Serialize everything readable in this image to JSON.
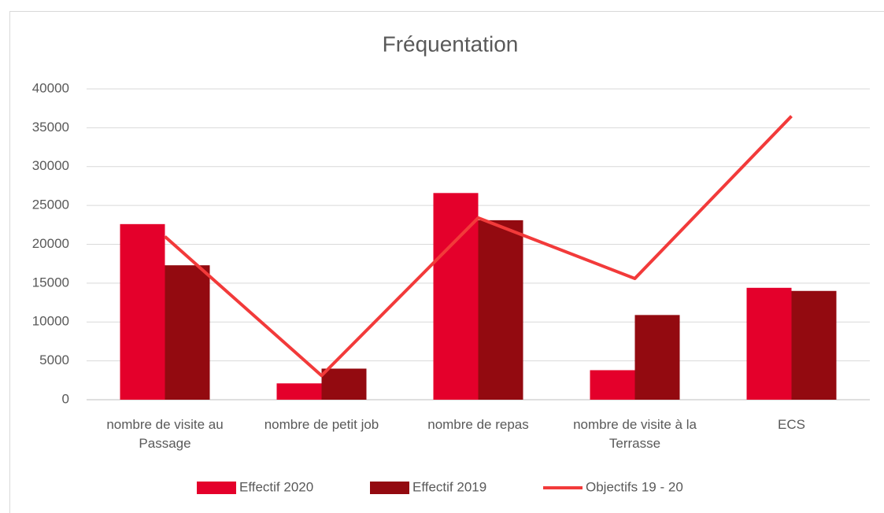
{
  "chart_data": {
    "type": "bar-line",
    "title": "Fréquentation",
    "categories": [
      "nombre de visite au Passage",
      "nombre de petit job",
      "nombre de repas",
      "nombre de visite à la Terrasse",
      "ECS"
    ],
    "series": [
      {
        "name": "Effectif 2020",
        "type": "bar",
        "color": "#e4002b",
        "values": [
          22600,
          2100,
          26600,
          3800,
          14400
        ]
      },
      {
        "name": "Effectif 2019",
        "type": "bar",
        "color": "#930a10",
        "values": [
          17300,
          4000,
          23100,
          10900,
          14000
        ]
      },
      {
        "name": "Objectifs 19 - 20",
        "type": "line",
        "color": "#f23a3a",
        "values": [
          21000,
          3100,
          23400,
          15600,
          36500
        ]
      }
    ],
    "ylim": [
      0,
      40000
    ],
    "yticks": [
      0,
      5000,
      10000,
      15000,
      20000,
      25000,
      30000,
      35000,
      40000
    ],
    "grid": true,
    "legend": "bottom"
  }
}
